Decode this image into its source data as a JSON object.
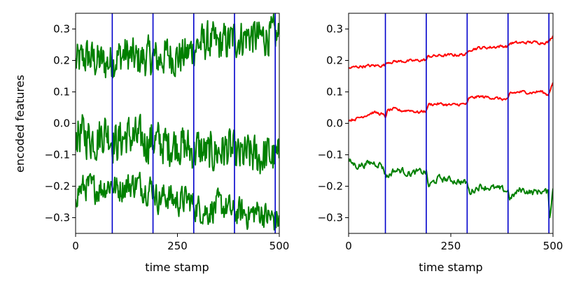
{
  "chart_data": [
    {
      "type": "line",
      "xlabel": "time stamp",
      "ylabel": "encoded features",
      "xlim": [
        0,
        500
      ],
      "ylim": [
        -0.35,
        0.35
      ],
      "xticks": [
        0,
        250,
        500
      ],
      "yticks": [
        -0.3,
        -0.2,
        -0.1,
        0.0,
        0.1,
        0.2,
        0.3
      ],
      "change_points": [
        90,
        190,
        290,
        390,
        490
      ],
      "change_point_color": "#0000cc",
      "grid": false,
      "series": [
        {
          "color": "#008000",
          "x": [
            0,
            25,
            50,
            75,
            90,
            100,
            125,
            150,
            175,
            190,
            200,
            225,
            250,
            275,
            290,
            300,
            325,
            350,
            375,
            390,
            400,
            425,
            450,
            475,
            500
          ],
          "values": [
            0.19,
            0.21,
            0.2,
            0.19,
            0.2,
            0.21,
            0.22,
            0.2,
            0.21,
            0.21,
            0.2,
            0.22,
            0.21,
            0.22,
            0.24,
            0.25,
            0.26,
            0.25,
            0.26,
            0.27,
            0.27,
            0.28,
            0.27,
            0.28,
            0.27
          ]
        },
        {
          "color": "#008000",
          "x": [
            0,
            25,
            50,
            75,
            90,
            100,
            125,
            150,
            175,
            190,
            200,
            225,
            250,
            275,
            290,
            300,
            325,
            350,
            375,
            390,
            400,
            425,
            450,
            475,
            500
          ],
          "values": [
            -0.03,
            -0.04,
            -0.05,
            -0.02,
            -0.05,
            -0.06,
            -0.04,
            -0.05,
            -0.06,
            -0.05,
            -0.06,
            -0.07,
            -0.06,
            -0.08,
            -0.09,
            -0.08,
            -0.1,
            -0.09,
            -0.08,
            -0.1,
            -0.11,
            -0.1,
            -0.11,
            -0.1,
            -0.12
          ]
        },
        {
          "color": "#008000",
          "x": [
            0,
            25,
            50,
            75,
            90,
            100,
            125,
            150,
            175,
            190,
            200,
            225,
            250,
            275,
            290,
            300,
            325,
            350,
            375,
            390,
            400,
            425,
            450,
            475,
            500
          ],
          "values": [
            -0.22,
            -0.2,
            -0.21,
            -0.2,
            -0.19,
            -0.21,
            -0.2,
            -0.19,
            -0.21,
            -0.2,
            -0.24,
            -0.23,
            -0.25,
            -0.24,
            -0.26,
            -0.27,
            -0.28,
            -0.26,
            -0.27,
            -0.29,
            -0.28,
            -0.29,
            -0.28,
            -0.3,
            -0.31
          ]
        }
      ]
    },
    {
      "type": "line",
      "xlabel": "time stamp",
      "ylabel": "",
      "xlim": [
        0,
        500
      ],
      "ylim": [
        -0.35,
        0.35
      ],
      "xticks": [
        0,
        250,
        500
      ],
      "yticks": [
        -0.3,
        -0.2,
        -0.1,
        0.0,
        0.1,
        0.2,
        0.3
      ],
      "change_points": [
        90,
        190,
        290,
        390,
        490
      ],
      "change_point_color": "#0000cc",
      "grid": false,
      "series": [
        {
          "color": "#ff0000",
          "x": [
            0,
            20,
            40,
            60,
            80,
            90,
            95,
            120,
            150,
            170,
            190,
            195,
            220,
            250,
            270,
            290,
            295,
            320,
            350,
            370,
            390,
            395,
            420,
            450,
            470,
            488,
            495,
            500
          ],
          "values": [
            0.175,
            0.18,
            0.182,
            0.183,
            0.184,
            0.186,
            0.195,
            0.197,
            0.198,
            0.2,
            0.202,
            0.213,
            0.215,
            0.217,
            0.218,
            0.22,
            0.235,
            0.24,
            0.242,
            0.245,
            0.245,
            0.255,
            0.256,
            0.258,
            0.257,
            0.258,
            0.27,
            0.28
          ]
        },
        {
          "color": "#ff0000",
          "x": [
            0,
            20,
            40,
            60,
            80,
            90,
            95,
            110,
            130,
            150,
            170,
            190,
            195,
            220,
            250,
            270,
            290,
            295,
            320,
            350,
            370,
            390,
            395,
            420,
            450,
            470,
            488,
            495,
            500
          ],
          "values": [
            0.01,
            0.015,
            0.025,
            0.035,
            0.03,
            0.02,
            0.04,
            0.045,
            0.04,
            0.042,
            0.035,
            0.04,
            0.06,
            0.062,
            0.058,
            0.06,
            0.062,
            0.08,
            0.085,
            0.082,
            0.078,
            0.075,
            0.095,
            0.1,
            0.098,
            0.102,
            0.09,
            0.115,
            0.13
          ]
        },
        {
          "color": "#008000",
          "x": [
            0,
            20,
            40,
            60,
            80,
            90,
            95,
            110,
            130,
            150,
            170,
            190,
            195,
            220,
            250,
            270,
            290,
            295,
            320,
            350,
            370,
            390,
            395,
            420,
            450,
            470,
            488,
            492,
            500
          ],
          "values": [
            -0.12,
            -0.135,
            -0.13,
            -0.125,
            -0.13,
            -0.16,
            -0.17,
            -0.15,
            -0.15,
            -0.16,
            -0.155,
            -0.155,
            -0.2,
            -0.175,
            -0.18,
            -0.185,
            -0.19,
            -0.22,
            -0.2,
            -0.205,
            -0.21,
            -0.215,
            -0.24,
            -0.21,
            -0.22,
            -0.215,
            -0.22,
            -0.295,
            -0.21
          ]
        }
      ]
    }
  ]
}
